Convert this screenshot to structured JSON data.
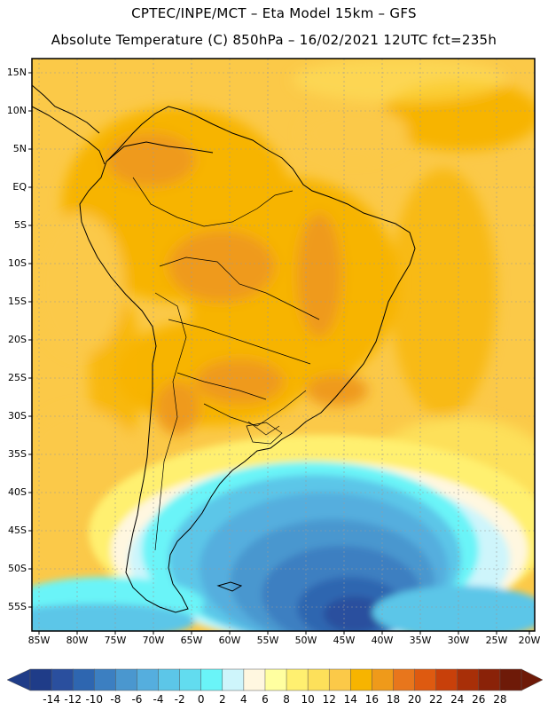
{
  "header": {
    "title_line1": "CPTEC/INPE/MCT –  Eta Model 15km – GFS",
    "title_line2": "Absolute Temperature (C) 850hPa – 16/02/2021 12UTC fct=235h"
  },
  "map": {
    "lat_labels": [
      "15N",
      "10N",
      "5N",
      "EQ",
      "5S",
      "10S",
      "15S",
      "20S",
      "25S",
      "30S",
      "35S",
      "40S",
      "45S",
      "50S",
      "55S"
    ],
    "lon_labels": [
      "85W",
      "80W",
      "75W",
      "70W",
      "65W",
      "60W",
      "55W",
      "50W",
      "45W",
      "40W",
      "35W",
      "30W",
      "25W",
      "20W"
    ],
    "grid": true
  },
  "colorbar": {
    "labels": [
      "-14",
      "-12",
      "-10",
      "-8",
      "-6",
      "-4",
      "-2",
      "0",
      "2",
      "4",
      "6",
      "8",
      "10",
      "12",
      "14",
      "16",
      "18",
      "20",
      "22",
      "24",
      "26",
      "28"
    ],
    "colors": [
      "#1f3c88",
      "#2a4f9e",
      "#2e66b0",
      "#3c7fc1",
      "#4a97cf",
      "#55aede",
      "#5cc6e8",
      "#62dcef",
      "#6af4f8",
      "#cef5fb",
      "#fff7e0",
      "#ffffa0",
      "#fff070",
      "#fde05a",
      "#fbc948",
      "#f7b400",
      "#ef9a1a",
      "#e8761c",
      "#de5a10",
      "#c8400a",
      "#a82f08",
      "#8a2208",
      "#6e1a08"
    ]
  }
}
